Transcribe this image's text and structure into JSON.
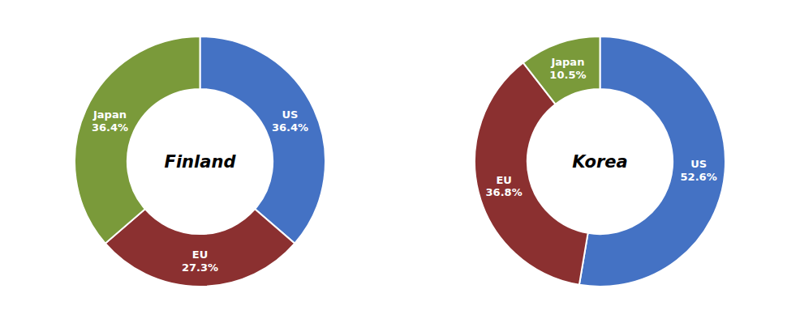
{
  "chart_data": [
    {
      "type": "donut",
      "title": "Finland",
      "categories": [
        "US",
        "EU",
        "Japan"
      ],
      "values": [
        36.4,
        27.3,
        36.4
      ],
      "value_labels": [
        "36.4%",
        "27.3%",
        "36.4%"
      ],
      "colors": [
        "#4472C4",
        "#8B3030",
        "#7A9A3A"
      ],
      "data_labels": true
    },
    {
      "type": "donut",
      "title": "Korea",
      "categories": [
        "US",
        "EU",
        "Japan"
      ],
      "values": [
        52.6,
        36.8,
        10.5
      ],
      "value_labels": [
        "52.6%",
        "36.8%",
        "10.5%"
      ],
      "colors": [
        "#4472C4",
        "#8B3030",
        "#7A9A3A"
      ],
      "data_labels": true
    }
  ]
}
